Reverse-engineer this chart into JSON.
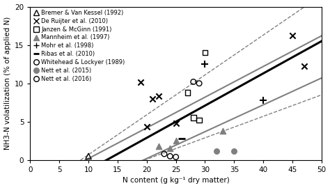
{
  "title": "",
  "xlabel": "N content (g kg⁻¹ dry matter)",
  "ylabel": "NH3-N volatilization (% of applied N)",
  "xlim": [
    0,
    50
  ],
  "ylim": [
    0,
    20
  ],
  "xticks": [
    0,
    5,
    10,
    15,
    20,
    25,
    30,
    35,
    40,
    45,
    50
  ],
  "yticks": [
    0,
    5,
    10,
    15,
    20
  ],
  "regression_x_start": 5,
  "regression_x_end": 50,
  "reg_black": {
    "slope": 0.42,
    "intercept": -5.5
  },
  "reg_gray_upper": {
    "slope": 0.4,
    "intercept": -3.8
  },
  "reg_gray_lower": {
    "slope": 0.35,
    "intercept": -6.8
  },
  "reg_dash_upper": {
    "slope": 0.52,
    "intercept": -4.5
  },
  "reg_dash_lower": {
    "slope": 0.28,
    "intercept": -5.5
  },
  "datasets": {
    "Bremer & Van Kessel (1992)": {
      "marker": "^",
      "color": "black",
      "filled": false,
      "points": [
        [
          10,
          0.5
        ]
      ]
    },
    "De Ruijter et al. (2010)": {
      "marker": "x",
      "color": "black",
      "filled": false,
      "points": [
        [
          19,
          10.2
        ],
        [
          21,
          8.0
        ],
        [
          22,
          8.3
        ],
        [
          20,
          4.3
        ],
        [
          25,
          4.8
        ],
        [
          45,
          16.2
        ],
        [
          47,
          12.2
        ]
      ]
    },
    "Janzen & McGinn (1991)": {
      "marker": "s",
      "color": "black",
      "filled": false,
      "points": [
        [
          27,
          8.8
        ],
        [
          28,
          5.5
        ],
        [
          29,
          5.2
        ],
        [
          30,
          14.0
        ]
      ]
    },
    "Mannheim et al. (1997)": {
      "marker": "^",
      "color": "gray",
      "filled": true,
      "points": [
        [
          22,
          1.8
        ],
        [
          24,
          1.5
        ],
        [
          25,
          2.5
        ],
        [
          33,
          3.8
        ]
      ]
    },
    "Mohr et al. (1998)": {
      "marker": "+",
      "color": "black",
      "filled": false,
      "points": [
        [
          30,
          12.5
        ],
        [
          40,
          7.8
        ]
      ]
    },
    "Ribas et al. (2010)": {
      "marker": "_",
      "color": "black",
      "filled": false,
      "points": [
        [
          26,
          2.8
        ]
      ]
    },
    "Whitehead & Lockyer (1989)": {
      "marker": "o",
      "color": "black",
      "filled": false,
      "points": [
        [
          28,
          10.2
        ],
        [
          29,
          10.0
        ]
      ]
    },
    "Nett et al. (2015)": {
      "marker": "o",
      "color": "gray",
      "filled": true,
      "points": [
        [
          32,
          1.2
        ],
        [
          35,
          1.2
        ]
      ]
    },
    "Nett et al. (2016)": {
      "marker": "o",
      "color": "black",
      "filled": false,
      "points": [
        [
          23,
          0.8
        ],
        [
          24,
          0.5
        ],
        [
          25,
          0.4
        ]
      ]
    }
  },
  "legend_order": [
    "Bremer & Van Kessel (1992)",
    "De Ruijter et al. (2010)",
    "Janzen & McGinn (1991)",
    "Mannheim et al. (1997)",
    "Mohr et al. (1998)",
    "Ribas et al. (2010)",
    "Whitehead & Lockyer (1989)",
    "Nett et al. (2015)",
    "Nett et al. (2016)"
  ],
  "figsize": [
    4.74,
    2.7
  ],
  "dpi": 100
}
